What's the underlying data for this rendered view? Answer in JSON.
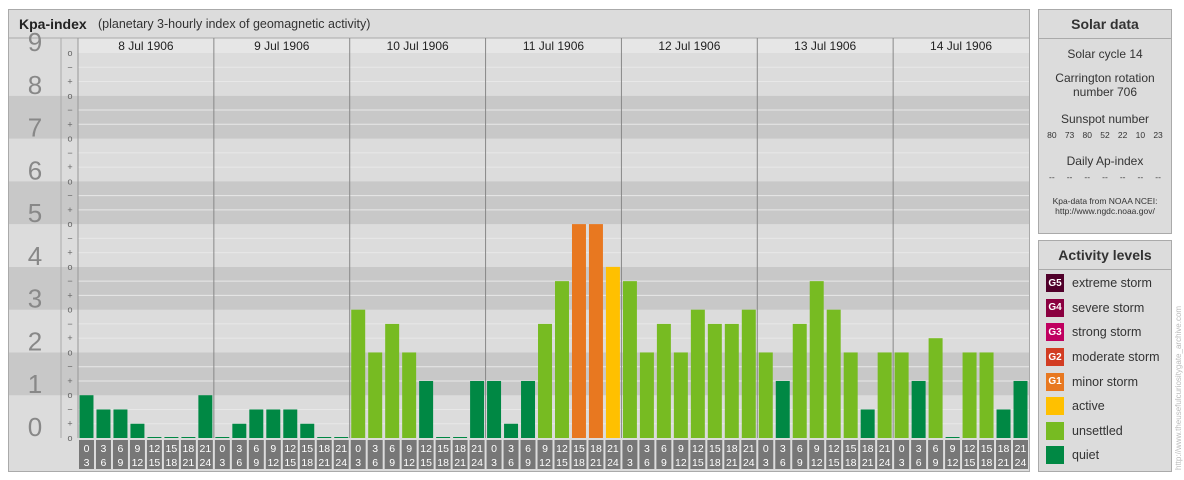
{
  "header": {
    "title": "Kpa-index",
    "subtitle": "(planetary 3-hourly index of geomagnetic activity)"
  },
  "chart_data": {
    "type": "bar",
    "title": "Kpa-index",
    "subtitle": "(planetary 3-hourly index of geomagnetic activity)",
    "ylim": [
      0,
      9
    ],
    "y_ticks": [
      "0",
      "1",
      "2",
      "3",
      "4",
      "5",
      "6",
      "7",
      "8",
      "9"
    ],
    "y_minor_marks": [
      "o",
      "+",
      "−"
    ],
    "days": [
      "8 Jul 1906",
      "9 Jul 1906",
      "10 Jul 1906",
      "11 Jul 1906",
      "12 Jul 1906",
      "13 Jul 1906",
      "14 Jul 1906"
    ],
    "interval_labels": [
      [
        "0",
        "3"
      ],
      [
        "3",
        "6"
      ],
      [
        "6",
        "9"
      ],
      [
        "9",
        "12"
      ],
      [
        "12",
        "15"
      ],
      [
        "15",
        "18"
      ],
      [
        "18",
        "21"
      ],
      [
        "21",
        "24"
      ]
    ],
    "values": [
      [
        1.0,
        0.667,
        0.667,
        0.333,
        0.0,
        0.0,
        0.0,
        1.0
      ],
      [
        0.0,
        0.333,
        0.667,
        0.667,
        0.667,
        0.333,
        0.0,
        0.0
      ],
      [
        3.0,
        2.0,
        2.667,
        2.0,
        1.333,
        0.0,
        0.0,
        1.333
      ],
      [
        1.333,
        0.333,
        1.333,
        2.667,
        3.667,
        5.0,
        5.0,
        4.0
      ],
      [
        3.667,
        2.0,
        2.667,
        2.0,
        3.0,
        2.667,
        2.667,
        3.0
      ],
      [
        2.0,
        1.333,
        2.667,
        3.667,
        3.0,
        2.0,
        0.667,
        2.0
      ],
      [
        2.0,
        1.333,
        2.333,
        0.0,
        2.0,
        2.0,
        0.667,
        1.333
      ]
    ],
    "level_colors": {
      "quiet": "#008844",
      "unsettled": "#77bb22",
      "active": "#ffc000",
      "minor storm": "#e87820",
      "moderate storm": "#d23c22",
      "strong storm": "#c00060",
      "severe storm": "#8a0040",
      "extreme storm": "#50002a"
    },
    "grid": true,
    "legend": "right"
  },
  "solar": {
    "title": "Solar data",
    "cycle": "Solar cycle 14",
    "carrington_line1": "Carrington rotation",
    "carrington_line2": "number 706",
    "sunspot_title": "Sunspot number",
    "sunspot_values": [
      "80",
      "73",
      "80",
      "52",
      "22",
      "10",
      "23"
    ],
    "ap_title": "Daily Ap-index",
    "ap_values": [
      "--",
      "--",
      "--",
      "--",
      "--",
      "--",
      "--"
    ],
    "source_line1": "Kpa-data from NOAA NCEI:",
    "source_line2": "http://www.ngdc.noaa.gov/"
  },
  "activity": {
    "title": "Activity levels",
    "items": [
      {
        "badge": "G5",
        "label": "extreme storm",
        "color": "#50002a"
      },
      {
        "badge": "G4",
        "label": "severe storm",
        "color": "#8a0040"
      },
      {
        "badge": "G3",
        "label": "strong storm",
        "color": "#c00060"
      },
      {
        "badge": "G2",
        "label": "moderate storm",
        "color": "#d23c22"
      },
      {
        "badge": "G1",
        "label": "minor storm",
        "color": "#e87820"
      },
      {
        "badge": "",
        "label": "active",
        "color": "#ffc000"
      },
      {
        "badge": "",
        "label": "unsettled",
        "color": "#77bb22"
      },
      {
        "badge": "",
        "label": "quiet",
        "color": "#008844"
      }
    ]
  },
  "watermark": "http://www.theusefulcuriositygate_archive.com"
}
